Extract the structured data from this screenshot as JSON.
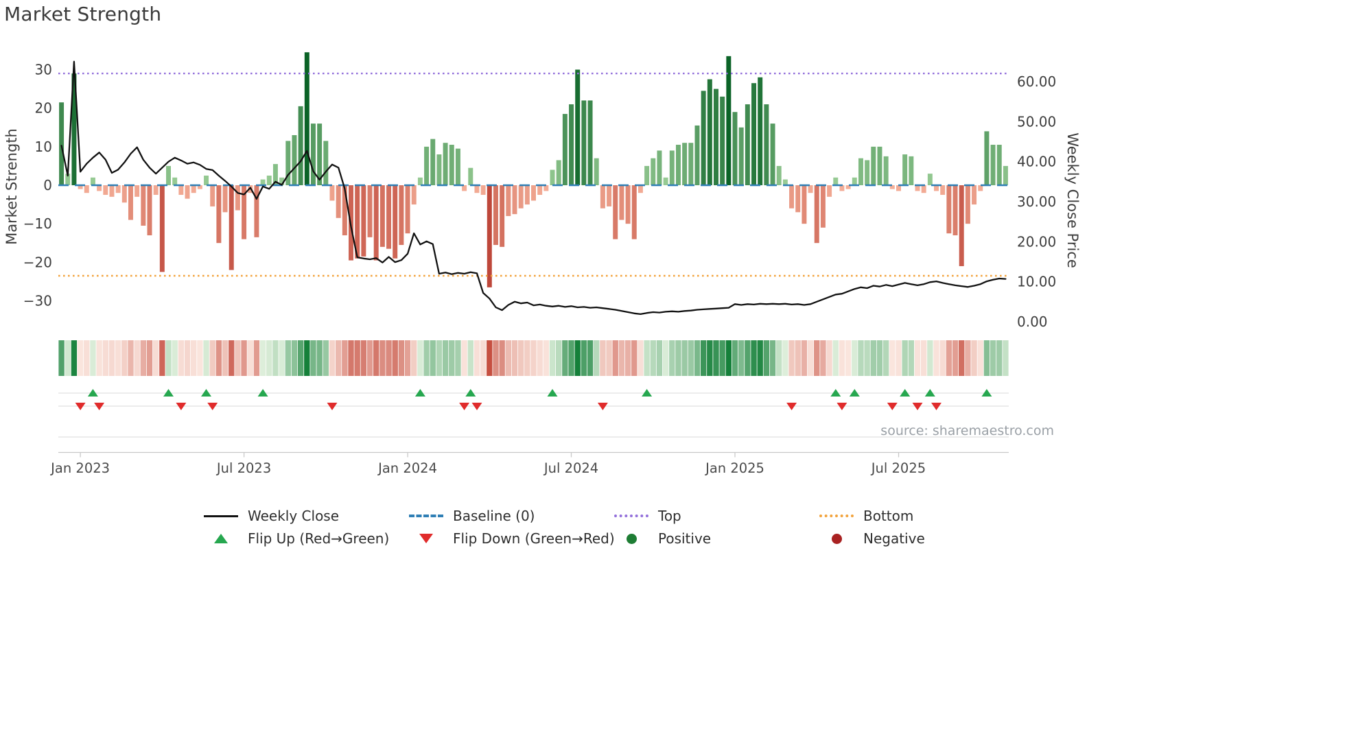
{
  "title": "Market Strength",
  "source_text": "source: sharemaestro.com",
  "colors": {
    "bar_green_light": "#9fd19a",
    "bar_green_dark": "#0b6327",
    "bar_red_light": "#f6b29b",
    "bar_red_dark": "#b02d22",
    "heat_green_light": "#e7f4e2",
    "heat_green_dark": "#15803a",
    "heat_red_light": "#fcebe3",
    "heat_red_dark": "#bf3a2b",
    "line": "#111111",
    "baseline": "#2f7fb5",
    "top": "#9370db",
    "bottom": "#f2a33c",
    "flip_up": "#26a74f",
    "flip_down": "#e02b2b",
    "positive_dot": "#1e7d34",
    "negative_dot": "#a92222"
  },
  "legend": {
    "items": [
      {
        "label": "Weekly Close",
        "swatch": "line-solid-black"
      },
      {
        "label": "Baseline (0)",
        "swatch": "line-dashed-blue"
      },
      {
        "label": "Top",
        "swatch": "line-dotted-purple"
      },
      {
        "label": "Bottom",
        "swatch": "line-dotted-orange"
      },
      {
        "label": "Flip Up (Red→Green)",
        "swatch": "triangle-up-green"
      },
      {
        "label": "Flip Down (Green→Red)",
        "swatch": "triangle-down-red"
      },
      {
        "label": "Positive",
        "swatch": "dot-green"
      },
      {
        "label": "Negative",
        "swatch": "dot-darkred"
      }
    ]
  },
  "chart_data": {
    "type": "bar",
    "title": "Market Strength",
    "subtitle": "",
    "grid": "off",
    "legend_position": "bottom",
    "x_axis": {
      "tick_labels": [
        "Jan 2023",
        "Jul 2023",
        "Jan 2024",
        "Jul 2024",
        "Jan 2025",
        "Jul 2025"
      ],
      "tick_indices": [
        3,
        29,
        55,
        81,
        107,
        133
      ],
      "n_weeks": 151
    },
    "left_axis": {
      "label": "Market Strength",
      "ticks": [
        30,
        20,
        10,
        0,
        -10,
        -20,
        -30
      ],
      "lim": [
        -37.4,
        37.0
      ]
    },
    "right_axis": {
      "label": "Weekly Close Price",
      "ticks": [
        60,
        50,
        40,
        30,
        20,
        10,
        0
      ],
      "tick_labels": [
        "60.00",
        "50.00",
        "40.00",
        "30.00",
        "20.00",
        "10.00",
        "0.00"
      ],
      "lim": [
        -1.9,
        69.8
      ]
    },
    "series": [
      {
        "name": "Market Strength",
        "type": "bar",
        "axis": "left",
        "values": [
          21.5,
          3,
          29,
          -1,
          -2,
          2,
          -1.5,
          -2.5,
          -3,
          -2,
          -4.5,
          -9,
          -3,
          -10.5,
          -13,
          -2.5,
          -22.5,
          5,
          2,
          -2.5,
          -3.5,
          -2,
          -1,
          2.5,
          -5.5,
          -15,
          -7,
          -22,
          -6.5,
          -14,
          -2,
          -13.5,
          1.5,
          2.5,
          5.5,
          2,
          11.5,
          13,
          20.5,
          34.5,
          16,
          16,
          11.5,
          -4,
          -8.5,
          -13,
          -19.5,
          -19,
          -18.5,
          -13.5,
          -19.5,
          -16,
          -16.5,
          -19,
          -15.5,
          -12.5,
          -5,
          2,
          10,
          12,
          8,
          11,
          10.5,
          9.5,
          -1.5,
          4.5,
          -2,
          -2.5,
          -26.5,
          -15.5,
          -16,
          -8,
          -7.5,
          -6,
          -5,
          -4,
          -2.5,
          -1.5,
          4,
          6.5,
          18.5,
          21,
          30,
          22,
          22,
          7,
          -6,
          -5.5,
          -14,
          -9,
          -10,
          -14,
          -2,
          5,
          7,
          9,
          2,
          9,
          10.5,
          11,
          11,
          15.5,
          24.5,
          27.5,
          25,
          23,
          33.5,
          19,
          15,
          21,
          26.5,
          28,
          21,
          16,
          5,
          1.5,
          -6,
          -7,
          -10,
          -2,
          -15,
          -11,
          -3,
          2,
          -1.5,
          -1,
          2,
          7,
          6.5,
          10,
          10,
          7.5,
          -1,
          -1.5,
          8,
          7.5,
          -1.5,
          -2,
          3,
          -1.5,
          -2.5,
          -12.5,
          -13,
          -21,
          -10,
          -5,
          -1.5,
          14,
          10.5,
          10.5,
          5
        ]
      },
      {
        "name": "Weekly Close",
        "type": "line",
        "axis": "right",
        "values": [
          44,
          36.5,
          65,
          37.5,
          39.5,
          41,
          42.3,
          40.5,
          37.2,
          38,
          39.8,
          42,
          43.6,
          40.5,
          38.5,
          37,
          38.5,
          40,
          41,
          40.3,
          39.5,
          39.8,
          39.2,
          38.2,
          37.9,
          36.5,
          35.2,
          33.8,
          32.2,
          31.8,
          33.5,
          30.7,
          33.8,
          33.2,
          35,
          34.2,
          36.7,
          38.4,
          40.1,
          42.7,
          37.6,
          35.5,
          37.5,
          39.3,
          38.5,
          33.3,
          23.8,
          16.1,
          15.8,
          15.6,
          15.9,
          14.8,
          16.2,
          14.9,
          15.4,
          17,
          22.1,
          19.3,
          20.1,
          19.4,
          12,
          12.3,
          11.9,
          12.2,
          12,
          12.4,
          12.1,
          7.2,
          5.8,
          3.6,
          2.9,
          4.2,
          5,
          4.6,
          4.8,
          4.1,
          4.3,
          4,
          3.8,
          4,
          3.7,
          3.9,
          3.6,
          3.7,
          3.5,
          3.6,
          3.4,
          3.2,
          3,
          2.7,
          2.4,
          2.1,
          1.9,
          2.2,
          2.4,
          2.3,
          2.5,
          2.6,
          2.5,
          2.7,
          2.8,
          3,
          3.1,
          3.2,
          3.3,
          3.4,
          3.5,
          4.4,
          4.2,
          4.4,
          4.3,
          4.5,
          4.4,
          4.5,
          4.4,
          4.5,
          4.3,
          4.4,
          4.2,
          4.4,
          5,
          5.6,
          6.2,
          6.8,
          7,
          7.6,
          8.2,
          8.6,
          8.4,
          9,
          8.8,
          9.2,
          8.9,
          9.3,
          9.7,
          9.4,
          9.1,
          9.4,
          9.9,
          10.1,
          9.7,
          9.4,
          9.1,
          8.9,
          8.7,
          9,
          9.4,
          10.1,
          10.5,
          10.8,
          10.7
        ]
      }
    ],
    "heatmap_strip": "weekly color intensity derived from Market Strength bar values (green positive, red negative)",
    "reference_lines": [
      {
        "key": "baseline",
        "name": "Baseline (0)",
        "value": 0,
        "axis": "left",
        "style": "dashed",
        "color": "#2f7fb5"
      },
      {
        "key": "top",
        "name": "Top",
        "value": 29,
        "axis": "left",
        "style": "dotted",
        "color": "#9370db"
      },
      {
        "key": "bottom",
        "name": "Bottom",
        "value": -23.5,
        "axis": "left",
        "style": "dotted",
        "color": "#f2a33c"
      }
    ],
    "flip_up_indices": [
      5,
      17,
      23,
      32,
      57,
      65,
      78,
      93,
      123,
      126,
      134,
      138,
      147
    ],
    "flip_down_indices": [
      3,
      6,
      19,
      24,
      43,
      64,
      66,
      86,
      116,
      124,
      132,
      136,
      139
    ]
  }
}
